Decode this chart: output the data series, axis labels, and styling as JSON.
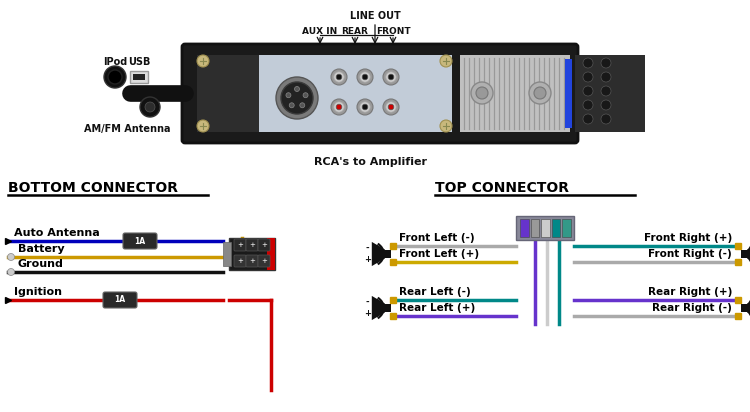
{
  "bg": "#ffffff",
  "bottom_title": "BOTTOM CONNECTOR",
  "top_title": "TOP CONNECTOR",
  "line_out": "LINE OUT",
  "aux_in": "AUX IN",
  "rear": "REAR",
  "front": "FRONT",
  "ipod": "IPod",
  "usb": "USB",
  "antenna": "AM/FM Antenna",
  "rca_label": "RCA's to Amplifier",
  "top_left_labels": [
    "Front Left (-)",
    "Front Left (+)",
    "Rear Left (-)",
    "Rear Left (+)"
  ],
  "top_right_labels": [
    "Front Right (+)",
    "Front Right (-)",
    "Rear Right (+)",
    "Rear Right (-)"
  ],
  "top_left_wire_colors": [
    "#aaaaaa",
    "#ccaa00",
    "#008888",
    "#6633cc"
  ],
  "top_right_wire_colors": [
    "#008888",
    "#aaaaaa",
    "#6633cc",
    "#aaaaaa"
  ],
  "vert_colors": [
    "#6633cc",
    "#cccccc",
    "#008888"
  ],
  "bottom_wire_labels": [
    "Auto Antenna",
    "Battery",
    "Ground",
    "Ignition"
  ],
  "bottom_wire_colors": [
    "#0000bb",
    "#cc9900",
    "#111111",
    "#cc0000"
  ],
  "bottom_wire_fuse": [
    true,
    false,
    false,
    true
  ]
}
